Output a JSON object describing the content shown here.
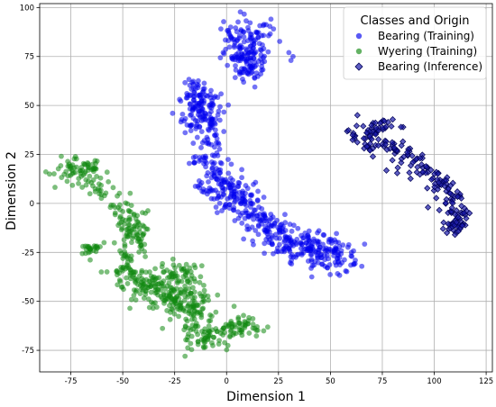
{
  "chart_data": {
    "type": "scatter",
    "title": "",
    "xlabel": "Dimension 1",
    "ylabel": "Dimension 2",
    "xlim": [
      -90,
      128
    ],
    "ylim": [
      -86,
      102
    ],
    "xticks": [
      -75,
      -50,
      -25,
      0,
      25,
      50,
      75,
      100,
      125
    ],
    "yticks": [
      -75,
      -50,
      -25,
      0,
      25,
      50,
      75,
      100
    ],
    "grid": true,
    "legend": {
      "title": "Classes and Origin",
      "placement": "top-right"
    },
    "series": [
      {
        "name": "Bearing (Training)",
        "marker": "circle",
        "color": "#0000ee",
        "clusters": [
          {
            "path": [
              [
                4,
                90
              ],
              [
                6,
                84
              ],
              [
                8,
                78
              ],
              [
                10,
                72
              ],
              [
                11,
                66
              ],
              [
                14,
                82
              ],
              [
                17,
                88
              ],
              [
                2,
                76
              ],
              [
                12,
                76
              ]
            ],
            "spread": 4,
            "count": 180
          },
          {
            "path": [
              [
                -15,
                60
              ],
              [
                -13,
                52
              ],
              [
                -11,
                45
              ],
              [
                -9,
                40
              ],
              [
                -17,
                48
              ],
              [
                -7,
                55
              ]
            ],
            "spread": 4,
            "count": 150
          },
          {
            "path": [
              [
                -10,
                30
              ],
              [
                -8,
                22
              ],
              [
                -5,
                15
              ],
              [
                0,
                10
              ],
              [
                5,
                5
              ],
              [
                10,
                0
              ],
              [
                15,
                -5
              ],
              [
                20,
                -10
              ],
              [
                25,
                -15
              ],
              [
                30,
                -20
              ],
              [
                35,
                -22
              ],
              [
                40,
                -22
              ],
              [
                45,
                -24
              ],
              [
                50,
                -25
              ],
              [
                55,
                -27
              ],
              [
                58,
                -28
              ]
            ],
            "spread": 4.5,
            "count": 420
          },
          {
            "path": [
              [
                -12,
                10
              ],
              [
                -6,
                5
              ],
              [
                2,
                0
              ],
              [
                20,
                -20
              ],
              [
                28,
                -25
              ]
            ],
            "spread": 3,
            "count": 60
          }
        ],
        "outliers": [
          [
            30,
            77
          ],
          [
            32,
            75
          ],
          [
            31,
            73
          ],
          [
            -26,
            46
          ],
          [
            -19,
            40
          ],
          [
            62,
            -29
          ],
          [
            12,
            -6
          ]
        ]
      },
      {
        "name": "Wyering (Training)",
        "marker": "circle",
        "color": "#118811",
        "clusters": [
          {
            "path": [
              [
                -80,
                15
              ],
              [
                -75,
                18
              ],
              [
                -70,
                20
              ],
              [
                -66,
                14
              ],
              [
                -62,
                9
              ],
              [
                -57,
                6
              ]
            ],
            "spread": 3.5,
            "count": 90
          },
          {
            "path": [
              [
                -55,
                0
              ],
              [
                -50,
                -5
              ],
              [
                -47,
                -10
              ],
              [
                -44,
                -15
              ],
              [
                -42,
                -22
              ],
              [
                -46,
                -2
              ]
            ],
            "spread": 3.5,
            "count": 90
          },
          {
            "path": [
              [
                -68,
                -24
              ],
              [
                -65,
                -23
              ],
              [
                -60,
                -21
              ]
            ],
            "spread": 1.5,
            "count": 25
          },
          {
            "path": [
              [
                -52,
                -30
              ],
              [
                -47,
                -35
              ],
              [
                -42,
                -40
              ],
              [
                -38,
                -42
              ],
              [
                -32,
                -45
              ],
              [
                -25,
                -48
              ],
              [
                -20,
                -52
              ],
              [
                -15,
                -55
              ],
              [
                -12,
                -58
              ],
              [
                -30,
                -38
              ],
              [
                -22,
                -35
              ],
              [
                -18,
                -40
              ],
              [
                -28,
                -55
              ]
            ],
            "spread": 5,
            "count": 330
          },
          {
            "path": [
              [
                -20,
                -65
              ],
              [
                -15,
                -70
              ],
              [
                -10,
                -68
              ],
              [
                -5,
                -66
              ],
              [
                0,
                -64
              ],
              [
                5,
                -62
              ],
              [
                10,
                -63
              ],
              [
                15,
                -63
              ],
              [
                -18,
                -74
              ]
            ],
            "spread": 2.8,
            "count": 110
          }
        ],
        "outliers": [
          [
            -63,
            -22
          ],
          [
            -59,
            -20
          ],
          [
            -49,
            -21
          ],
          [
            -20,
            -78
          ]
        ]
      },
      {
        "name": "Bearing (Inference)",
        "marker": "diamond",
        "color": "#1a1aaa",
        "edge": "#000055",
        "clusters": [
          {
            "path": [
              [
                63,
                36
              ],
              [
                67,
                33
              ],
              [
                72,
                31
              ],
              [
                77,
                30
              ],
              [
                82,
                27
              ],
              [
                87,
                24
              ],
              [
                92,
                20
              ],
              [
                97,
                16
              ],
              [
                102,
                12
              ],
              [
                106,
                8
              ],
              [
                109,
                3
              ],
              [
                111,
                -3
              ],
              [
                113,
                -8
              ],
              [
                112,
                -13
              ],
              [
                108,
                -10
              ],
              [
                104,
                4
              ],
              [
                66,
                28
              ],
              [
                73,
                40
              ],
              [
                80,
                38
              ]
            ],
            "spread": 2.4,
            "count": 210
          }
        ],
        "outliers": [
          [
            63,
            45
          ],
          [
            76,
            42
          ],
          [
            84,
            39
          ],
          [
            110,
            -16
          ],
          [
            117,
            -5
          ],
          [
            97,
            -2
          ]
        ]
      }
    ]
  }
}
